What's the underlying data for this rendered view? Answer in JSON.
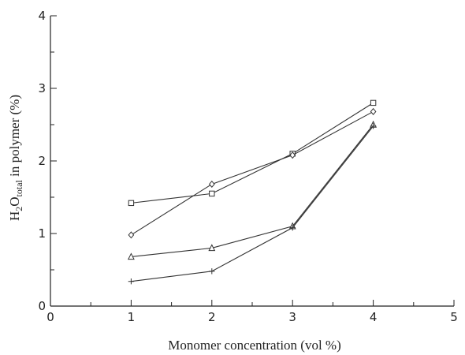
{
  "chart_data": {
    "type": "line",
    "xlabel": "Monomer concentration (vol %)",
    "ylabel": {
      "prefix": "H",
      "sub1": "2",
      "mid": "O",
      "sub2": "total",
      "suffix": " in polymer (%)"
    },
    "xlim": [
      0,
      5
    ],
    "ylim": [
      0,
      4
    ],
    "x_ticks": [
      "0",
      "1",
      "2",
      "3",
      "4",
      "5"
    ],
    "y_ticks": [
      "0",
      "1",
      "2",
      "3",
      "4"
    ],
    "grid": false,
    "series": [
      {
        "marker": "square",
        "x": [
          1,
          2,
          3,
          4
        ],
        "y": [
          1.42,
          1.55,
          2.1,
          2.8
        ]
      },
      {
        "marker": "diamond",
        "x": [
          1,
          2,
          3,
          4
        ],
        "y": [
          0.98,
          1.68,
          2.08,
          2.68
        ]
      },
      {
        "marker": "triangle",
        "x": [
          1,
          2,
          3,
          4
        ],
        "y": [
          0.68,
          0.8,
          1.1,
          2.5
        ]
      },
      {
        "marker": "plus",
        "x": [
          1,
          2,
          3,
          4
        ],
        "y": [
          0.34,
          0.48,
          1.08,
          2.48
        ]
      }
    ]
  }
}
